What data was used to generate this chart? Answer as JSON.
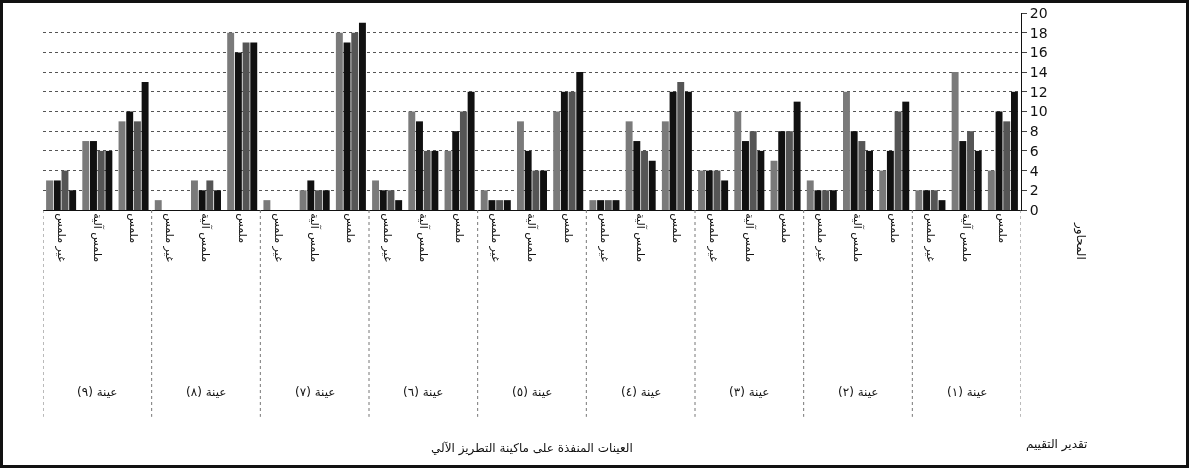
{
  "chart_data": {
    "type": "bar",
    "categories": [
      "غير ملمس",
      "ملمس آلية",
      "ملمس",
      "غير ملمس",
      "ملمس آلية",
      "ملمس",
      "غير ملمس",
      "ملمس آلية",
      "ملمس",
      "غير ملمس",
      "ملمس آلية",
      "ملمس",
      "غير ملمس",
      "ملمس آلية",
      "ملمس",
      "غير ملمس",
      "ملمس آلية",
      "ملمس",
      "غير ملمس",
      "ملمس آلية",
      "ملمس",
      "غير ملمس",
      "ملمس آلية",
      "ملمس",
      "غير ملمس",
      "ملمس آلية",
      "ملمس"
    ],
    "series": [
      {
        "color": "#7a7a7a",
        "values": [
          3,
          7,
          9,
          1,
          3,
          18,
          1,
          2,
          18,
          3,
          10,
          6,
          2,
          9,
          10,
          1,
          9,
          9,
          4,
          10,
          5,
          3,
          12,
          4,
          2,
          14,
          4
        ]
      },
      {
        "color": "#111111",
        "values": [
          3,
          7,
          10,
          0,
          2,
          16,
          0,
          3,
          17,
          2,
          9,
          8,
          1,
          6,
          12,
          1,
          7,
          12,
          4,
          7,
          8,
          2,
          8,
          6,
          2,
          7,
          10
        ]
      },
      {
        "color": "#555555",
        "values": [
          4,
          6,
          9,
          0,
          3,
          17,
          0,
          2,
          18,
          2,
          6,
          10,
          1,
          4,
          12,
          1,
          6,
          13,
          4,
          8,
          8,
          2,
          7,
          10,
          2,
          8,
          9
        ]
      },
      {
        "color": "#111111",
        "values": [
          2,
          6,
          13,
          0,
          2,
          17,
          0,
          2,
          19,
          1,
          6,
          12,
          1,
          4,
          14,
          1,
          5,
          12,
          3,
          6,
          11,
          2,
          6,
          11,
          1,
          6,
          12
        ]
      }
    ],
    "annotations": [
      "عينة (٩)",
      "عينة (٨)",
      "عينة (٧)",
      "عينة (٦)",
      "عينة (٥)",
      "عينة (٤)",
      "عينة (٣)",
      "عينة (٢)",
      "عينة (١)",
      "المحاور",
      "تقدير التقييم",
      "العينات المنفذة على ماكينة التطريز الآلي"
    ],
    "ylim": [
      0,
      20
    ],
    "yticks": [
      0,
      2,
      4,
      6,
      8,
      10,
      12,
      14,
      16,
      18,
      20
    ],
    "grid": "y"
  }
}
